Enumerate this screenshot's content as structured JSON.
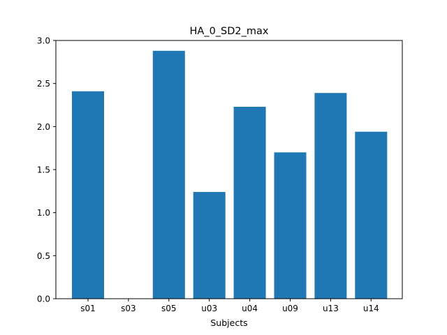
{
  "chart_data": {
    "type": "bar",
    "title": "HA_0_SD2_max",
    "xlabel": "Subjects",
    "ylabel": "",
    "categories": [
      "s01",
      "s03",
      "s05",
      "u03",
      "u04",
      "u09",
      "u13",
      "u14"
    ],
    "values": [
      2.41,
      0.0,
      2.88,
      1.24,
      2.23,
      1.7,
      2.39,
      1.94
    ],
    "ylim": [
      0,
      3.0
    ],
    "yticks": [
      "0.0",
      "0.5",
      "1.0",
      "1.5",
      "2.0",
      "2.5",
      "3.0"
    ],
    "bar_color": "#1f77b4",
    "grid": false,
    "legend": "none"
  }
}
